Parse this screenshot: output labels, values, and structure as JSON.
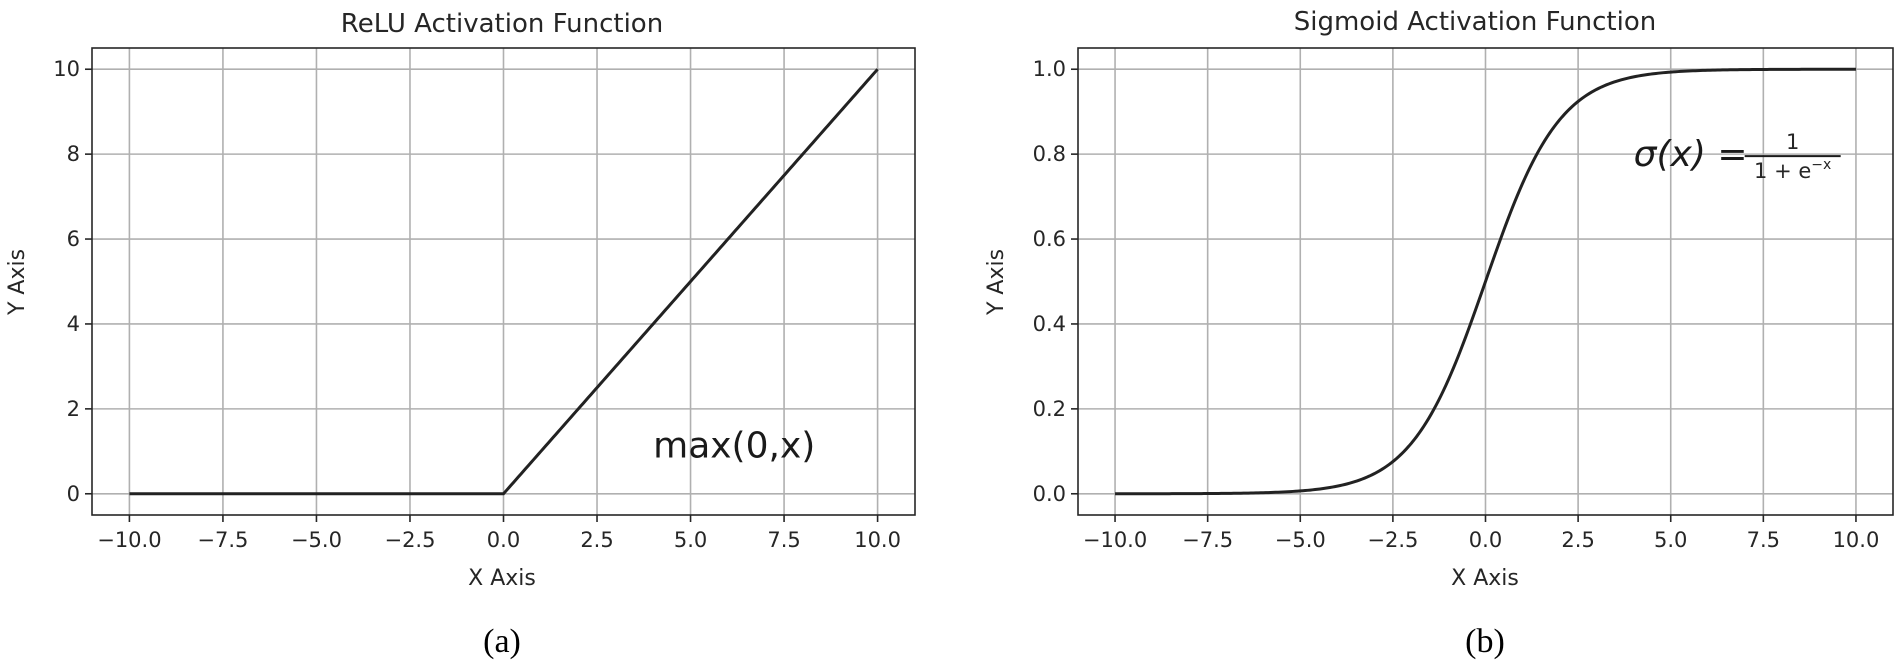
{
  "chart_data": [
    {
      "type": "line",
      "title": "ReLU Activation Function",
      "xlabel": "X Axis",
      "ylabel": "Y Axis",
      "xlim": [
        -11.0,
        11.0
      ],
      "ylim": [
        -0.5,
        10.5
      ],
      "xticks": [
        -10.0,
        -7.5,
        -5.0,
        -2.5,
        0.0,
        2.5,
        5.0,
        7.5,
        10.0
      ],
      "xtick_labels": [
        "−10.0",
        "−7.5",
        "−5.0",
        "−2.5",
        "0.0",
        "2.5",
        "5.0",
        "7.5",
        "10.0"
      ],
      "yticks": [
        0,
        2,
        4,
        6,
        8,
        10
      ],
      "ytick_labels": [
        "0",
        "2",
        "4",
        "6",
        "8",
        "10"
      ],
      "grid": true,
      "series": [
        {
          "function": "relu",
          "x": [
            -10,
            -7.5,
            -5,
            -2.5,
            0,
            2.5,
            5,
            7.5,
            10
          ],
          "values": [
            0,
            0,
            0,
            0,
            0,
            2.5,
            5,
            7.5,
            10
          ],
          "color": "#222222"
        }
      ],
      "annotation": {
        "text": "max(0,x)",
        "x": 4.0,
        "y": 0.85
      },
      "caption": "(a)"
    },
    {
      "type": "line",
      "title": "Sigmoid Activation Function",
      "xlabel": "X Axis",
      "ylabel": "Y Axis",
      "xlim": [
        -11.0,
        11.0
      ],
      "ylim": [
        -0.05,
        1.05
      ],
      "xticks": [
        -10.0,
        -7.5,
        -5.0,
        -2.5,
        0.0,
        2.5,
        5.0,
        7.5,
        10.0
      ],
      "xtick_labels": [
        "−10.0",
        "−7.5",
        "−5.0",
        "−2.5",
        "0.0",
        "2.5",
        "5.0",
        "7.5",
        "10.0"
      ],
      "yticks": [
        0.0,
        0.2,
        0.4,
        0.6,
        0.8,
        1.0
      ],
      "ytick_labels": [
        "0.0",
        "0.2",
        "0.4",
        "0.6",
        "0.8",
        "1.0"
      ],
      "grid": true,
      "series": [
        {
          "function": "sigmoid",
          "x": [
            -10,
            -7.5,
            -5,
            -2.5,
            0,
            2.5,
            5,
            7.5,
            10
          ],
          "values": [
            0.0,
            0.001,
            0.007,
            0.076,
            0.5,
            0.924,
            0.993,
            0.999,
            1.0
          ],
          "color": "#222222"
        }
      ],
      "annotation": {
        "lhs": "σ(x) =",
        "numerator": "1",
        "denominator": "1 + e",
        "exponent": "−x",
        "x": 4.0,
        "y": 0.8
      },
      "caption": "(b)"
    }
  ]
}
